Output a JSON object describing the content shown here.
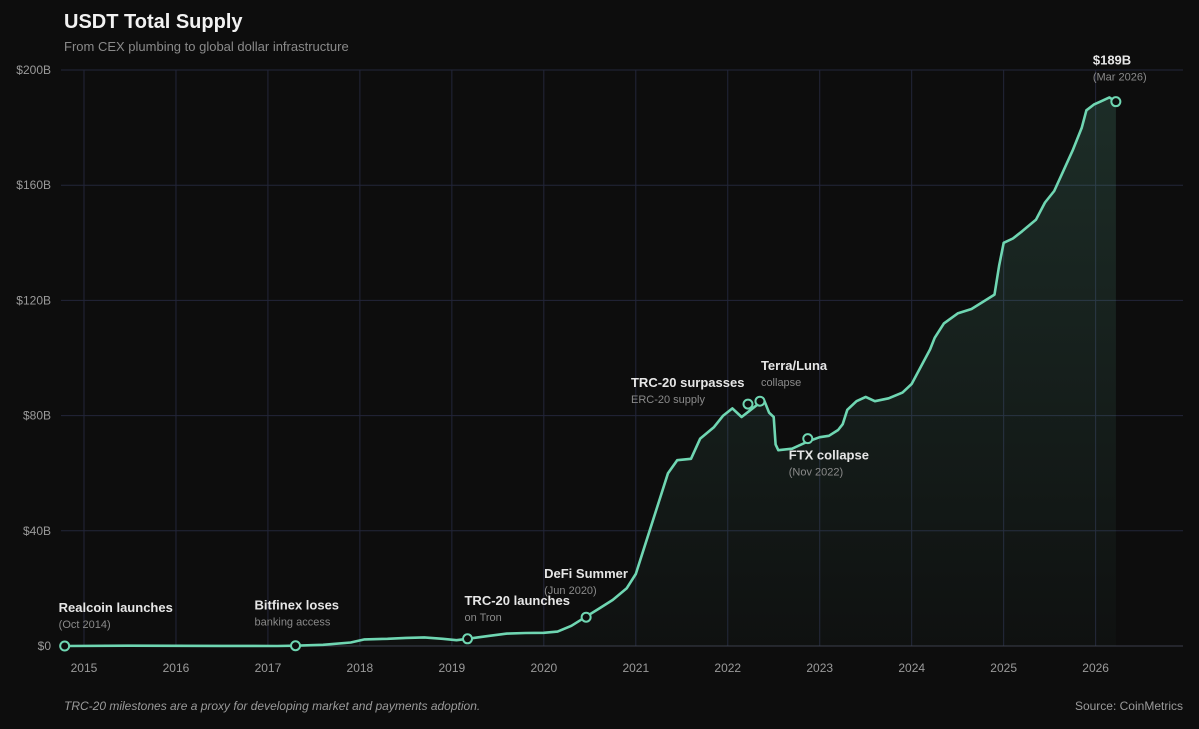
{
  "header": {
    "title": "USDT Total Supply",
    "subtitle": "From CEX plumbing to global dollar infrastructure"
  },
  "footer": {
    "note": "TRC-20 milestones are a proxy for developing market and payments adoption.",
    "source": "Source: CoinMetrics"
  },
  "colors": {
    "background": "#0d0d0d",
    "line": "#6fd6b2",
    "grid": "#23263a",
    "text": "#e8e8e8",
    "muted": "#8a8a8a"
  },
  "chart_data": {
    "type": "area",
    "title": "USDT Total Supply",
    "subtitle": "From CEX plumbing to global dollar infrastructure",
    "xlabel": "",
    "ylabel": "",
    "xlim": [
      2014.75,
      2026.95
    ],
    "ylim": [
      0,
      200
    ],
    "y_unit": "$B",
    "y_ticks": [
      0,
      40,
      80,
      120,
      160,
      200
    ],
    "y_tick_labels": [
      "$0",
      "$40B",
      "$80B",
      "$120B",
      "$160B",
      "$200B"
    ],
    "x_ticks": [
      2015,
      2016,
      2017,
      2018,
      2019,
      2020,
      2021,
      2022,
      2023,
      2024,
      2025,
      2026
    ],
    "x_tick_labels": [
      "2015",
      "2016",
      "2017",
      "2018",
      "2019",
      "2020",
      "2021",
      "2022",
      "2023",
      "2024",
      "2025",
      "2026"
    ],
    "grid": true,
    "series": [
      {
        "values_unit": "USD billions",
        "points": [
          [
            2014.79,
            0.0
          ],
          [
            2015.5,
            0.1
          ],
          [
            2016.5,
            0.05
          ],
          [
            2017.1,
            0.0
          ],
          [
            2017.3,
            0.1
          ],
          [
            2017.6,
            0.4
          ],
          [
            2017.9,
            1.2
          ],
          [
            2018.05,
            2.3
          ],
          [
            2018.3,
            2.5
          ],
          [
            2018.5,
            2.8
          ],
          [
            2018.7,
            3.0
          ],
          [
            2018.9,
            2.5
          ],
          [
            2019.05,
            2.0
          ],
          [
            2019.17,
            2.5
          ],
          [
            2019.4,
            3.5
          ],
          [
            2019.6,
            4.3
          ],
          [
            2019.8,
            4.5
          ],
          [
            2020.0,
            4.6
          ],
          [
            2020.15,
            5.0
          ],
          [
            2020.3,
            7.0
          ],
          [
            2020.45,
            10.0
          ],
          [
            2020.6,
            13.0
          ],
          [
            2020.75,
            16.0
          ],
          [
            2020.9,
            20.0
          ],
          [
            2021.0,
            25.0
          ],
          [
            2021.1,
            35.0
          ],
          [
            2021.25,
            50.0
          ],
          [
            2021.35,
            60.0
          ],
          [
            2021.45,
            64.5
          ],
          [
            2021.6,
            65.0
          ],
          [
            2021.7,
            72.0
          ],
          [
            2021.85,
            76.0
          ],
          [
            2021.95,
            80.0
          ],
          [
            2022.05,
            82.5
          ],
          [
            2022.15,
            79.5
          ],
          [
            2022.25,
            82.0
          ],
          [
            2022.35,
            84.5
          ],
          [
            2022.4,
            85.0
          ],
          [
            2022.45,
            81.0
          ],
          [
            2022.5,
            79.5
          ],
          [
            2022.52,
            70.0
          ],
          [
            2022.55,
            68.0
          ],
          [
            2022.7,
            68.5
          ],
          [
            2022.87,
            71.0
          ],
          [
            2023.0,
            72.5
          ],
          [
            2023.1,
            73.0
          ],
          [
            2023.2,
            75.0
          ],
          [
            2023.25,
            77.0
          ],
          [
            2023.3,
            82.0
          ],
          [
            2023.4,
            85.0
          ],
          [
            2023.5,
            86.5
          ],
          [
            2023.6,
            85.0
          ],
          [
            2023.75,
            86.0
          ],
          [
            2023.9,
            88.0
          ],
          [
            2024.0,
            91.0
          ],
          [
            2024.1,
            97.0
          ],
          [
            2024.2,
            103.0
          ],
          [
            2024.25,
            107.0
          ],
          [
            2024.35,
            112.0
          ],
          [
            2024.5,
            115.5
          ],
          [
            2024.65,
            117.0
          ],
          [
            2024.8,
            120.0
          ],
          [
            2024.9,
            122.0
          ],
          [
            2024.95,
            132.0
          ],
          [
            2025.0,
            140.0
          ],
          [
            2025.1,
            141.5
          ],
          [
            2025.2,
            144.0
          ],
          [
            2025.35,
            148.0
          ],
          [
            2025.45,
            154.0
          ],
          [
            2025.55,
            158.0
          ],
          [
            2025.65,
            165.0
          ],
          [
            2025.75,
            172.0
          ],
          [
            2025.85,
            180.0
          ],
          [
            2025.9,
            186.0
          ],
          [
            2025.98,
            188.0
          ],
          [
            2026.05,
            189.0
          ],
          [
            2026.15,
            190.5
          ],
          [
            2026.22,
            189.0
          ]
        ]
      }
    ],
    "annotations": [
      {
        "x": 2014.79,
        "y": 0.0,
        "label": "Realcoin launches",
        "sublabel": "(Oct 2014)"
      },
      {
        "x": 2017.3,
        "y": 0.1,
        "label": "Bitfinex loses",
        "sublabel": "banking access"
      },
      {
        "x": 2019.17,
        "y": 2.5,
        "label": "TRC-20 launches",
        "sublabel": "on Tron"
      },
      {
        "x": 2020.46,
        "y": 10.0,
        "label": "DeFi Summer",
        "sublabel": "(Jun 2020)"
      },
      {
        "x": 2022.22,
        "y": 84.0,
        "label": "TRC-20 surpasses",
        "sublabel": "ERC-20 supply"
      },
      {
        "x": 2022.35,
        "y": 85.0,
        "label": "Terra/Luna",
        "sublabel": "collapse"
      },
      {
        "x": 2022.87,
        "y": 72.0,
        "label": "FTX collapse",
        "sublabel": "(Nov 2022)"
      },
      {
        "x": 2026.22,
        "y": 189.0,
        "label": "$189B",
        "sublabel": "(Mar 2026)"
      }
    ]
  }
}
